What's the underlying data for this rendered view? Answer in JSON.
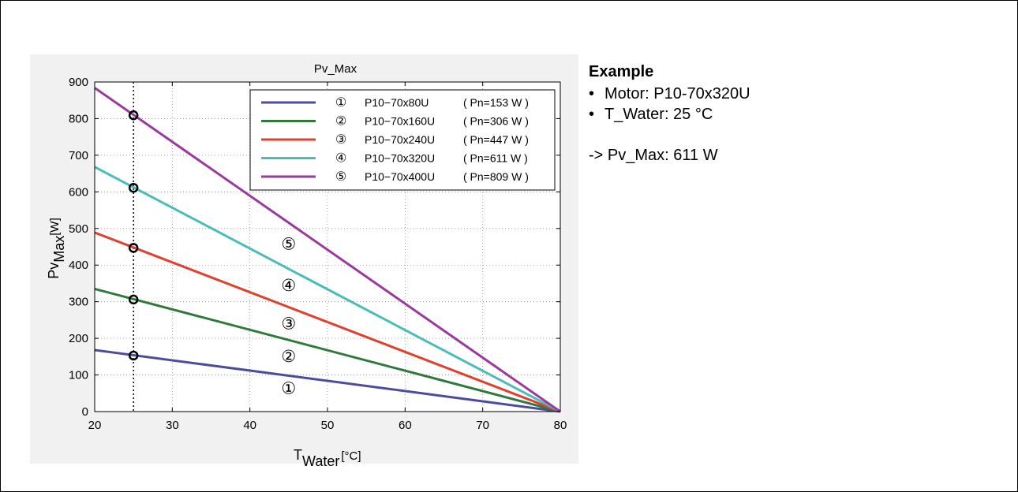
{
  "chart_data": {
    "type": "line",
    "title": "Pv_Max",
    "xlabel_main": "T",
    "xlabel_sub": "Water",
    "xlabel_unit": "[°C]",
    "ylabel_main": "Pv",
    "ylabel_sub": "Max",
    "ylabel_unit": "[W]",
    "xlim": [
      20,
      80
    ],
    "ylim": [
      0,
      900
    ],
    "xticks": [
      20,
      30,
      40,
      50,
      60,
      70,
      80
    ],
    "yticks": [
      0,
      100,
      200,
      300,
      400,
      500,
      600,
      700,
      800,
      900
    ],
    "grid": true,
    "legend_position": "top-right",
    "reference_line_x": 25,
    "series": [
      {
        "marker": "①",
        "name": "P10−70x80U",
        "pn": "( Pn=153 W )",
        "color": "#4b4ba0",
        "x": [
          20,
          80
        ],
        "y": [
          168,
          0
        ],
        "point": {
          "x": 25,
          "y": 153
        }
      },
      {
        "marker": "②",
        "name": "P10−70x160U",
        "pn": "( Pn=306 W )",
        "color": "#2d7a3a",
        "x": [
          20,
          80
        ],
        "y": [
          335,
          0
        ],
        "point": {
          "x": 25,
          "y": 306
        }
      },
      {
        "marker": "③",
        "name": "P10−70x240U",
        "pn": "( Pn=447 W )",
        "color": "#e04030",
        "x": [
          20,
          80
        ],
        "y": [
          489,
          0
        ],
        "point": {
          "x": 25,
          "y": 447
        }
      },
      {
        "marker": "④",
        "name": "P10−70x320U",
        "pn": "( Pn=611 W )",
        "color": "#4bbcbc",
        "x": [
          20,
          80
        ],
        "y": [
          668,
          0
        ],
        "point": {
          "x": 25,
          "y": 611
        }
      },
      {
        "marker": "⑤",
        "name": "P10−70x400U",
        "pn": "( Pn=809 W )",
        "color": "#9a3a9e",
        "x": [
          20,
          80
        ],
        "y": [
          884,
          0
        ],
        "point": {
          "x": 25,
          "y": 809
        }
      }
    ],
    "annotations": [
      {
        "text": "⑤",
        "x": 45,
        "y": 457
      },
      {
        "text": "④",
        "x": 45,
        "y": 344
      },
      {
        "text": "③",
        "x": 45,
        "y": 240
      },
      {
        "text": "②",
        "x": 45,
        "y": 151
      },
      {
        "text": "①",
        "x": 45,
        "y": 63
      }
    ]
  },
  "example": {
    "heading": "Example",
    "bullet": "•",
    "motor": "Motor:   P10-70x320U",
    "water": "T_Water: 25 °C",
    "result": "-> Pv_Max: 611 W"
  }
}
